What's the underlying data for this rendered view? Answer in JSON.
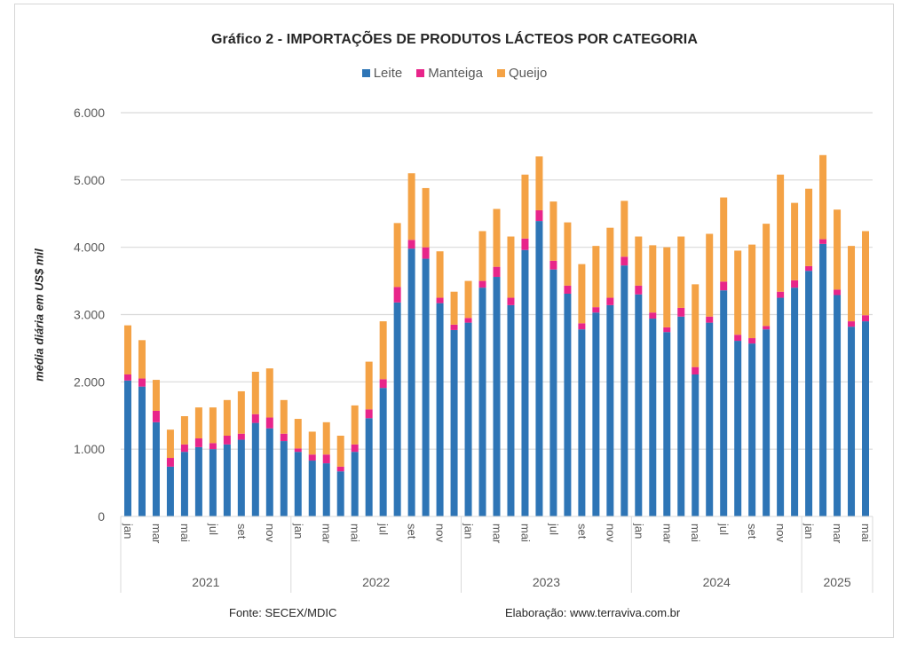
{
  "chart_data": {
    "type": "bar",
    "stacked": true,
    "title": "Gráfico 2 - IMPORTAÇÕES  DE PRODUTOS  LÁCTEOS POR CATEGORIA",
    "xlabel": "",
    "ylabel": "média diária em US$ mil",
    "ylim": [
      0,
      6000
    ],
    "yticks": [
      0,
      1000,
      2000,
      3000,
      4000,
      5000,
      6000
    ],
    "ytick_labels": [
      "0",
      "1.000",
      "2.000",
      "3.000",
      "4.000",
      "5.000",
      "6.000"
    ],
    "grid": true,
    "legend_position": "top",
    "years": [
      {
        "label": "2021",
        "months": 12
      },
      {
        "label": "2022",
        "months": 12
      },
      {
        "label": "2023",
        "months": 12
      },
      {
        "label": "2024",
        "months": 12
      },
      {
        "label": "2025",
        "months": 5
      }
    ],
    "month_labels": [
      "jan",
      "",
      "mar",
      "",
      "mai",
      "",
      "jul",
      "",
      "set",
      "",
      "nov",
      ""
    ],
    "categories": [
      "jan/2021",
      "fev/2021",
      "mar/2021",
      "abr/2021",
      "mai/2021",
      "jun/2021",
      "jul/2021",
      "ago/2021",
      "set/2021",
      "out/2021",
      "nov/2021",
      "dez/2021",
      "jan/2022",
      "fev/2022",
      "mar/2022",
      "abr/2022",
      "mai/2022",
      "jun/2022",
      "jul/2022",
      "ago/2022",
      "set/2022",
      "out/2022",
      "nov/2022",
      "dez/2022",
      "jan/2023",
      "fev/2023",
      "mar/2023",
      "abr/2023",
      "mai/2023",
      "jun/2023",
      "jul/2023",
      "ago/2023",
      "set/2023",
      "out/2023",
      "nov/2023",
      "dez/2023",
      "jan/2024",
      "fev/2024",
      "mar/2024",
      "abr/2024",
      "mai/2024",
      "jun/2024",
      "jul/2024",
      "ago/2024",
      "set/2024",
      "out/2024",
      "nov/2024",
      "dez/2024",
      "jan/2025",
      "fev/2025",
      "mar/2025",
      "abr/2025",
      "mai/2025"
    ],
    "series": [
      {
        "name": "Leite",
        "color": "#2E75B6",
        "values": [
          2020,
          1930,
          1400,
          740,
          960,
          1030,
          1000,
          1070,
          1140,
          1390,
          1310,
          1120,
          960,
          830,
          790,
          670,
          960,
          1460,
          1910,
          3180,
          3980,
          3830,
          3170,
          2770,
          2880,
          3400,
          3560,
          3140,
          3960,
          4390,
          3670,
          3310,
          2780,
          3030,
          3140,
          3730,
          3300,
          2940,
          2740,
          2970,
          2110,
          2880,
          3360,
          2610,
          2570,
          2780,
          3250,
          3400,
          3650,
          4050,
          3290,
          2820,
          2900
        ]
      },
      {
        "name": "Manteiga",
        "color": "#E8258A",
        "values": [
          90,
          120,
          170,
          130,
          110,
          130,
          90,
          130,
          90,
          130,
          160,
          110,
          50,
          90,
          130,
          70,
          110,
          130,
          130,
          230,
          130,
          170,
          80,
          80,
          70,
          100,
          150,
          110,
          170,
          160,
          130,
          120,
          90,
          80,
          110,
          130,
          130,
          90,
          70,
          130,
          110,
          90,
          130,
          90,
          80,
          50,
          90,
          110,
          70,
          70,
          80,
          80,
          90
        ]
      },
      {
        "name": "Queijo",
        "color": "#F4A245",
        "values": [
          730,
          570,
          460,
          420,
          420,
          460,
          530,
          530,
          630,
          630,
          730,
          500,
          440,
          340,
          480,
          460,
          580,
          710,
          860,
          950,
          990,
          880,
          690,
          490,
          550,
          740,
          860,
          910,
          950,
          800,
          880,
          940,
          880,
          910,
          1040,
          830,
          730,
          1000,
          1190,
          1060,
          1230,
          1230,
          1250,
          1250,
          1390,
          1520,
          1740,
          1150,
          1150,
          1250,
          1190,
          1120,
          1250
        ]
      }
    ]
  },
  "footer": {
    "source": "Fonte: SECEX/MDIC",
    "credit": "Elaboração: www.terraviva.com.br"
  }
}
